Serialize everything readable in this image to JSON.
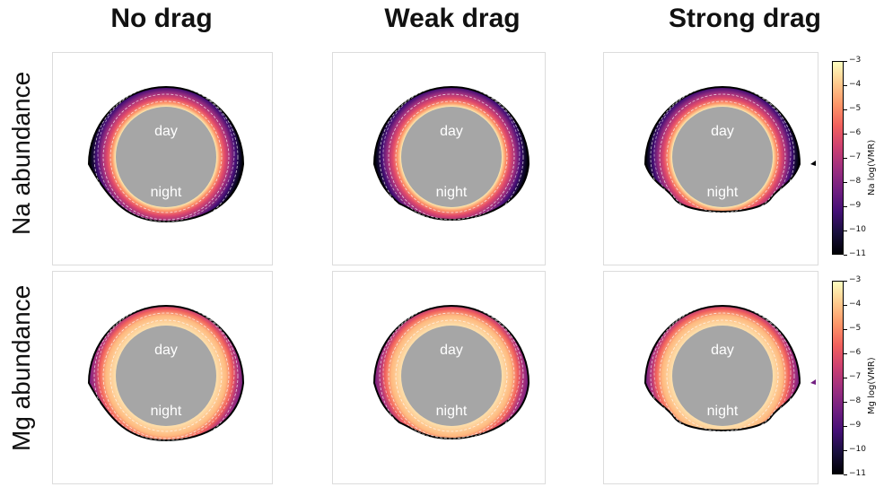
{
  "columns": [
    "No drag",
    "Weak drag",
    "Strong drag"
  ],
  "rows": [
    "Na abundance",
    "Mg abundance"
  ],
  "labels": {
    "day": "day",
    "night": "night"
  },
  "colorbars": [
    {
      "label": "Na log(VMR)",
      "ticks": [
        "−3",
        "−4",
        "−5",
        "−6",
        "−7",
        "−8",
        "−9",
        "−10",
        "−11"
      ]
    },
    {
      "label": "Mg log(VMR)",
      "ticks": [
        "−3",
        "−4",
        "−5",
        "−6",
        "−7",
        "−8",
        "−9",
        "−10",
        "−11"
      ]
    }
  ],
  "colors": {
    "planet": "#a6a6a6",
    "outline": "#000000",
    "colormap": [
      "#000004",
      "#180f3d",
      "#440f76",
      "#721f81",
      "#9e2f7f",
      "#cd4071",
      "#f1605d",
      "#fd9668",
      "#feca8d",
      "#fcfdbf"
    ]
  }
}
